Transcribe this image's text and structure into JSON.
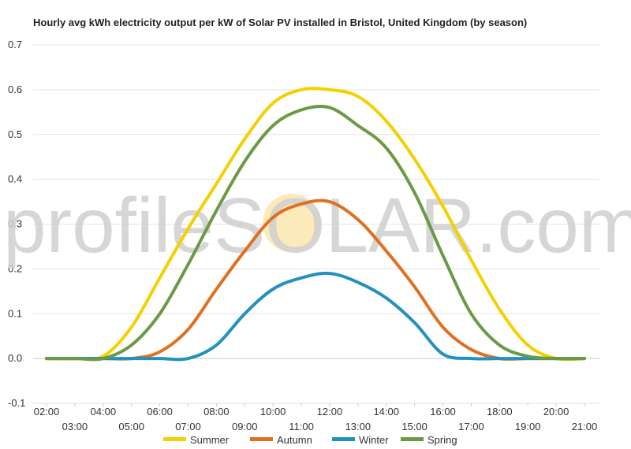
{
  "chart_data": {
    "type": "line",
    "title": "Hourly avg kWh electricity output per kW of Solar PV installed in Bristol, United Kingdom (by season)",
    "xlabel": "",
    "ylabel": "",
    "ylim": [
      -0.1,
      0.7
    ],
    "yticks": [
      "-0.1",
      "0.0",
      "0.1",
      "0.2",
      "0.3",
      "0.4",
      "0.5",
      "0.6",
      "0.7"
    ],
    "x": [
      "02:00",
      "03:00",
      "04:00",
      "05:00",
      "06:00",
      "07:00",
      "08:00",
      "09:00",
      "10:00",
      "11:00",
      "12:00",
      "13:00",
      "14:00",
      "15:00",
      "16:00",
      "17:00",
      "18:00",
      "19:00",
      "20:00",
      "21:00"
    ],
    "grid": true,
    "legend_position": "bottom",
    "watermark": "profileSOLAR.com",
    "series": [
      {
        "name": "Summer",
        "color": "#f5d000",
        "values": [
          0,
          0,
          0.005,
          0.07,
          0.18,
          0.29,
          0.39,
          0.49,
          0.57,
          0.6,
          0.6,
          0.585,
          0.53,
          0.445,
          0.34,
          0.22,
          0.11,
          0.03,
          0,
          0
        ]
      },
      {
        "name": "Autumn",
        "color": "#e07020",
        "values": [
          0,
          0,
          0,
          0,
          0.015,
          0.065,
          0.155,
          0.24,
          0.315,
          0.345,
          0.35,
          0.31,
          0.24,
          0.16,
          0.07,
          0.02,
          0,
          0,
          0,
          0
        ]
      },
      {
        "name": "Winter",
        "color": "#2290c0",
        "values": [
          0,
          0,
          0,
          0,
          0,
          0,
          0.03,
          0.1,
          0.155,
          0.18,
          0.19,
          0.17,
          0.135,
          0.08,
          0.01,
          0,
          0,
          0,
          0,
          0
        ]
      },
      {
        "name": "Spring",
        "color": "#6b9a45",
        "values": [
          0,
          0,
          0,
          0.03,
          0.1,
          0.21,
          0.33,
          0.44,
          0.52,
          0.555,
          0.56,
          0.52,
          0.47,
          0.37,
          0.23,
          0.1,
          0.03,
          0.005,
          0,
          0
        ]
      }
    ]
  }
}
